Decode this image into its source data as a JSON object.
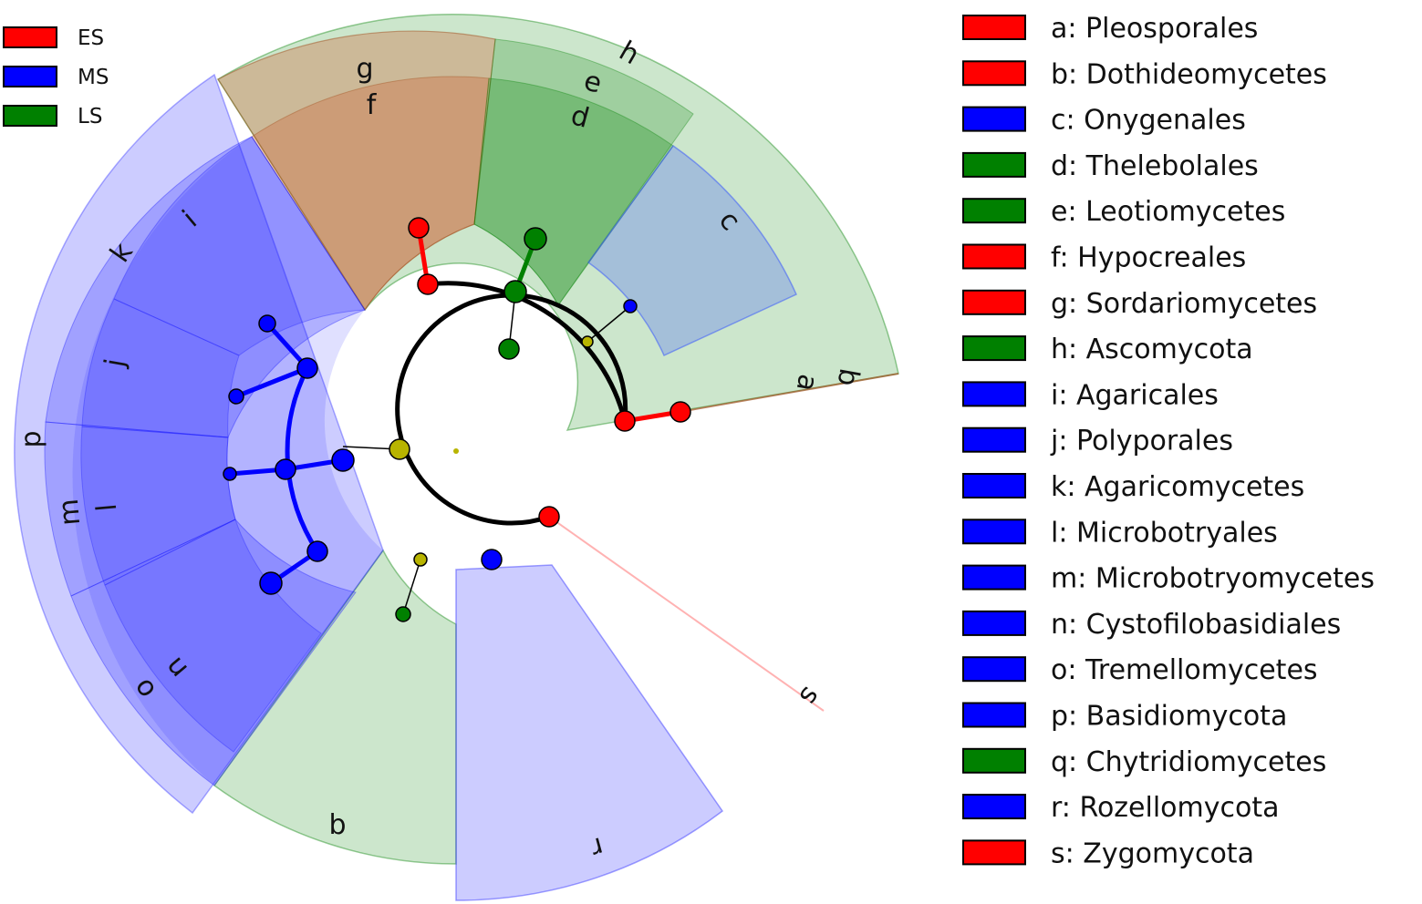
{
  "colors": {
    "ES": "#ff0000",
    "MS": "#0000ff",
    "LS": "#008000",
    "root": "#b8b400",
    "branch": "#000000"
  },
  "group_legend": [
    {
      "label": "ES",
      "group": "ES"
    },
    {
      "label": "MS",
      "group": "MS"
    },
    {
      "label": "LS",
      "group": "LS"
    }
  ],
  "taxa_legend": [
    {
      "label": "a: Pleosporales",
      "group": "ES"
    },
    {
      "label": "b: Dothideomycetes",
      "group": "ES"
    },
    {
      "label": "c: Onygenales",
      "group": "MS"
    },
    {
      "label": "d: Thelebolales",
      "group": "LS"
    },
    {
      "label": "e: Leotiomycetes",
      "group": "LS"
    },
    {
      "label": "f: Hypocreales",
      "group": "ES"
    },
    {
      "label": "g: Sordariomycetes",
      "group": "ES"
    },
    {
      "label": "h: Ascomycota",
      "group": "LS"
    },
    {
      "label": "i: Agaricales",
      "group": "MS"
    },
    {
      "label": "j: Polyporales",
      "group": "MS"
    },
    {
      "label": "k: Agaricomycetes",
      "group": "MS"
    },
    {
      "label": "l: Microbotryales",
      "group": "MS"
    },
    {
      "label": "m: Microbotryomycetes",
      "group": "MS"
    },
    {
      "label": "n: Cystofilobasidiales",
      "group": "MS"
    },
    {
      "label": "o: Tremellomycetes",
      "group": "MS"
    },
    {
      "label": "p: Basidiomycota",
      "group": "MS"
    },
    {
      "label": "q: Chytridiomycetes",
      "group": "LS"
    },
    {
      "label": "r: Rozellomycota",
      "group": "MS"
    },
    {
      "label": "s: Zygomycota",
      "group": "ES"
    }
  ],
  "sector_labels": {
    "a": "a",
    "b_upper": "b",
    "b_lower": "b",
    "c": "c",
    "d": "d",
    "e": "e",
    "f": "f",
    "g": "g",
    "h": "h",
    "i": "i",
    "j": "j",
    "k": "k",
    "l": "l",
    "m": "m",
    "n": "n",
    "o": "o",
    "p": "p",
    "r": "r",
    "s": "s"
  }
}
